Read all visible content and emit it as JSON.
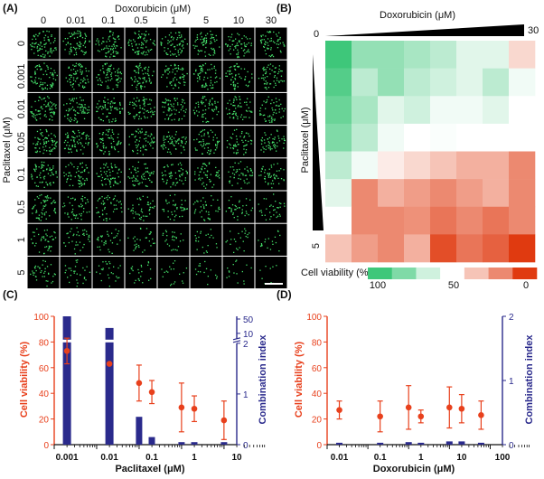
{
  "panel_labels": {
    "a": "(A)",
    "b": "(B)",
    "c": "(C)",
    "d": "(D)"
  },
  "colors": {
    "red": "#e8401c",
    "blue": "#2a2a8c",
    "green": "#3ec77a",
    "red_dark": "#e03a10",
    "cell_green": "#45e06a"
  },
  "panel_a": {
    "title": "Doxorubicin (μM)",
    "ylabel": "Paclitaxel (μM)",
    "col_labels": [
      "0",
      "0.01",
      "0.1",
      "0.5",
      "1",
      "5",
      "10",
      "30"
    ],
    "row_labels": [
      "0",
      "0.001",
      "0.01",
      "0.05",
      "0.1",
      "0.5",
      "1",
      "5"
    ],
    "density": [
      [
        1.0,
        0.95,
        0.9,
        0.9,
        0.85,
        0.85,
        0.8,
        0.8
      ],
      [
        0.95,
        0.9,
        0.9,
        0.85,
        0.8,
        0.8,
        0.75,
        0.75
      ],
      [
        0.95,
        0.9,
        0.85,
        0.85,
        0.8,
        0.75,
        0.75,
        0.7
      ],
      [
        0.9,
        0.9,
        0.85,
        0.8,
        0.8,
        0.75,
        0.7,
        0.7
      ],
      [
        0.85,
        0.8,
        0.8,
        0.75,
        0.7,
        0.65,
        0.6,
        0.6
      ],
      [
        0.75,
        0.6,
        0.6,
        0.55,
        0.5,
        0.45,
        0.45,
        0.4
      ],
      [
        0.55,
        0.45,
        0.4,
        0.35,
        0.3,
        0.25,
        0.25,
        0.2
      ],
      [
        0.45,
        0.35,
        0.3,
        0.25,
        0.2,
        0.15,
        0.15,
        0.05
      ]
    ]
  },
  "panel_b": {
    "title": "Doxorubicin (μM)",
    "ylabel": "Paclitaxel (μM)",
    "corner_min": "0",
    "corner_max_x": "30",
    "corner_max_y": "5",
    "legend_label": "Cell viability (%)",
    "legend_ticks": [
      "100",
      "50",
      "0"
    ],
    "viability": [
      [
        100,
        80,
        80,
        75,
        70,
        60,
        60,
        40
      ],
      [
        95,
        70,
        80,
        70,
        65,
        60,
        70,
        55
      ],
      [
        90,
        75,
        60,
        65,
        55,
        55,
        60,
        50
      ],
      [
        85,
        70,
        55,
        50,
        52,
        50,
        50,
        50
      ],
      [
        70,
        55,
        45,
        40,
        35,
        30,
        30,
        20
      ],
      [
        60,
        20,
        30,
        25,
        20,
        25,
        30,
        20
      ],
      [
        50,
        20,
        20,
        22,
        15,
        20,
        15,
        20
      ],
      [
        35,
        25,
        20,
        30,
        5,
        15,
        10,
        0
      ]
    ]
  },
  "chart_data": [
    {
      "type": "bar",
      "panel": "(C)",
      "xlabel": "Paclitaxel (μM)",
      "x_scale": "log",
      "x_ticks": [
        "0.001",
        "0.01",
        "0.1",
        "1",
        "10"
      ],
      "ylabel_left": "Cell viability (%)",
      "ylabel_right": "Combination index",
      "ylim_left": [
        0,
        100
      ],
      "y_ticks_left": [
        "0",
        "20",
        "40",
        "60",
        "80",
        "100"
      ],
      "y_ticks_right": [
        "0",
        "1",
        "2"
      ],
      "y_ticks_right_broken": [
        "10",
        "50"
      ],
      "series": [
        {
          "type": "scatter_errorbar",
          "color": "#e8401c",
          "x": [
            0.001,
            0.01,
            0.05,
            0.1,
            0.5,
            1,
            5
          ],
          "values": [
            73,
            63,
            48,
            41,
            29,
            28,
            19
          ],
          "errors": [
            10,
            0,
            14,
            9,
            19,
            10,
            15
          ]
        },
        {
          "type": "bar",
          "color": "#2a2a8c",
          "x": [
            0.001,
            0.01,
            0.05,
            0.1,
            0.5,
            1,
            5
          ],
          "values": [
            50,
            10,
            0.55,
            0.15,
            0.05,
            0.05,
            0.05
          ]
        }
      ]
    },
    {
      "type": "bar",
      "panel": "(D)",
      "xlabel": "Doxorubicin (μM)",
      "x_scale": "log",
      "x_ticks": [
        "0.01",
        "0.1",
        "1",
        "10",
        "100"
      ],
      "ylabel_left": "Cell viability (%)",
      "ylabel_right": "Combination index",
      "ylim_left": [
        0,
        100
      ],
      "ylim_right": [
        0,
        2
      ],
      "y_ticks_left": [
        "0",
        "20",
        "40",
        "60",
        "80",
        "100"
      ],
      "y_ticks_right": [
        "0",
        "1",
        "2"
      ],
      "series": [
        {
          "type": "scatter_errorbar",
          "color": "#e8401c",
          "x": [
            0.01,
            0.1,
            0.5,
            1,
            5,
            10,
            30
          ],
          "values": [
            27,
            22,
            29,
            22,
            29,
            28,
            23
          ],
          "errors": [
            7,
            12,
            17,
            5,
            16,
            11,
            11
          ]
        },
        {
          "type": "bar",
          "color": "#2a2a8c",
          "x": [
            0.01,
            0.1,
            0.5,
            1,
            5,
            10,
            30
          ],
          "values": [
            0.03,
            0.03,
            0.04,
            0.03,
            0.05,
            0.05,
            0.03
          ]
        }
      ]
    }
  ]
}
